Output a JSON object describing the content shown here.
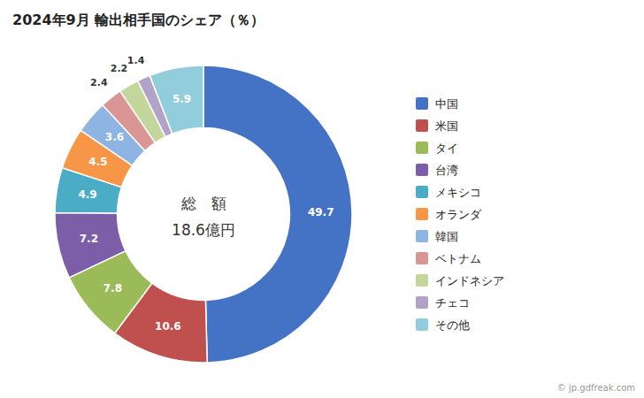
{
  "chart_data": {
    "type": "donut",
    "title": "2024年9月 輸出相手国のシェア（％）",
    "categories": [
      "中国",
      "米国",
      "タイ",
      "台湾",
      "メキシコ",
      "オランダ",
      "韓国",
      "ベトナム",
      "インドネシア",
      "チェコ",
      "その他"
    ],
    "values": [
      49.7,
      10.6,
      7.8,
      7.2,
      4.9,
      4.5,
      3.6,
      2.4,
      2.2,
      1.4,
      5.9
    ],
    "colors": [
      "#4472C4",
      "#C0504D",
      "#9BBB59",
      "#7B5EA7",
      "#4BACC6",
      "#F79646",
      "#8DB4E2",
      "#DA9694",
      "#C3D69B",
      "#B2A2C7",
      "#92CDDC"
    ],
    "data_labels": true,
    "legend": "right",
    "annotations": [
      "総　額",
      "18.6億円",
      "© jp.gdfreak.com"
    ]
  }
}
